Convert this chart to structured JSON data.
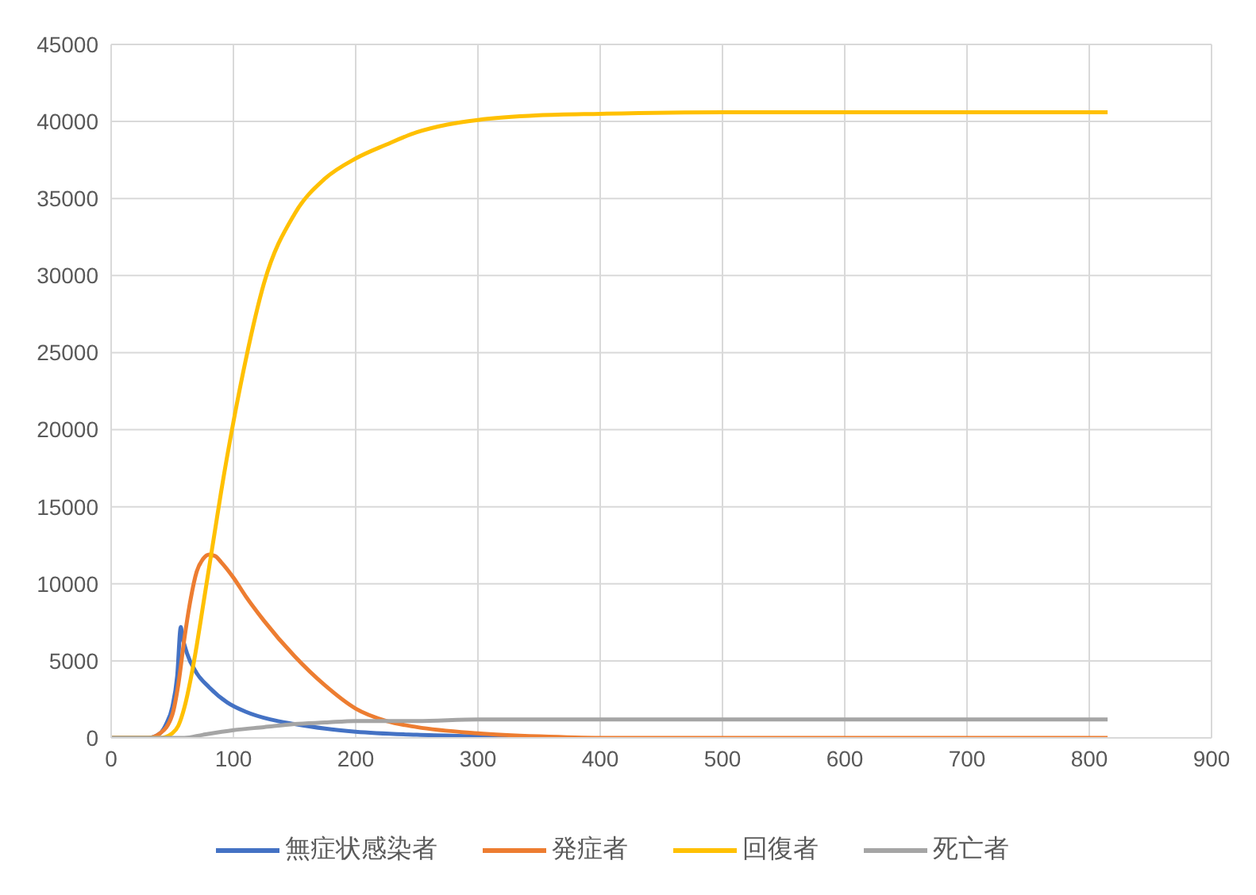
{
  "chart_data": {
    "type": "line",
    "xlim": [
      0,
      900
    ],
    "xticks": [
      0,
      100,
      200,
      300,
      400,
      500,
      600,
      700,
      800,
      900
    ],
    "ylim": [
      0,
      45000
    ],
    "yticks": [
      0,
      5000,
      10000,
      15000,
      20000,
      25000,
      30000,
      35000,
      40000,
      45000
    ],
    "grid": true,
    "legend": "bottom",
    "marker": "none",
    "line_style": "solid",
    "series": [
      {
        "name": "無症状感染者",
        "color": "#4472c4",
        "x": [
          0,
          30,
          40,
          45,
          50,
          54,
          57,
          58,
          62,
          70,
          80,
          95,
          110,
          130,
          150,
          175,
          200,
          250,
          300,
          350
        ],
        "values": [
          0,
          0,
          300,
          900,
          2000,
          4000,
          7200,
          6700,
          5500,
          4200,
          3300,
          2300,
          1700,
          1200,
          900,
          600,
          400,
          200,
          100,
          0
        ]
      },
      {
        "name": "発症者",
        "color": "#ed7d31",
        "x": [
          0,
          30,
          40,
          50,
          55,
          60,
          65,
          70,
          75,
          80,
          85,
          90,
          100,
          110,
          125,
          150,
          175,
          200,
          225,
          250,
          300,
          350,
          400,
          500,
          815
        ],
        "values": [
          0,
          0,
          300,
          1500,
          3500,
          6500,
          9000,
          10800,
          11600,
          11900,
          11800,
          11400,
          10400,
          9200,
          7600,
          5300,
          3400,
          1900,
          1100,
          700,
          300,
          100,
          0,
          0,
          0
        ]
      },
      {
        "name": "回復者",
        "color": "#ffc000",
        "x": [
          0,
          40,
          50,
          55,
          60,
          65,
          70,
          75,
          80,
          85,
          90,
          100,
          110,
          125,
          150,
          175,
          200,
          225,
          250,
          275,
          300,
          350,
          400,
          500,
          600,
          815
        ],
        "values": [
          0,
          0,
          300,
          800,
          2000,
          3800,
          6000,
          8500,
          11000,
          13500,
          16000,
          20500,
          24500,
          29500,
          34000,
          36300,
          37600,
          38500,
          39300,
          39800,
          40100,
          40400,
          40500,
          40600,
          40600,
          40600
        ]
      },
      {
        "name": "死亡者",
        "color": "#a5a5a5",
        "x": [
          0,
          55,
          60,
          75,
          100,
          125,
          150,
          175,
          200,
          250,
          300,
          400,
          815
        ],
        "values": [
          0,
          0,
          0,
          200,
          500,
          700,
          900,
          1000,
          1100,
          1100,
          1200,
          1200,
          1200
        ]
      }
    ]
  }
}
